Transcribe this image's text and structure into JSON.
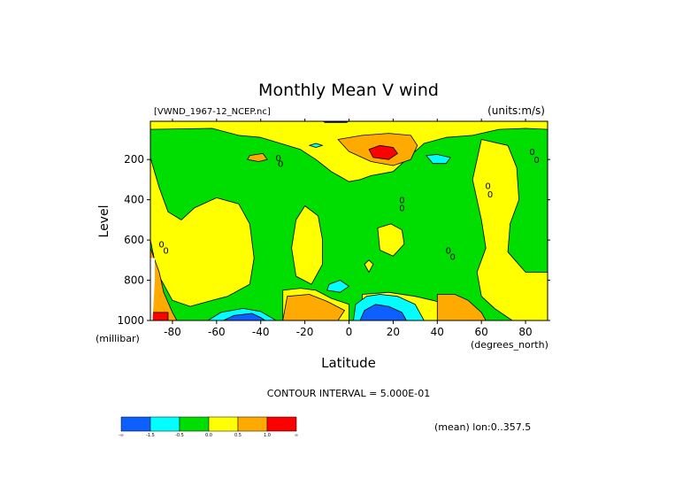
{
  "chart_data": {
    "type": "heatmap",
    "title": "Monthly Mean V wind",
    "dataset_label": "[VWND_1967-12_NCEP.nc]",
    "units_label": "(units:m/s)",
    "xlabel": "Latitude",
    "xunit": "(degrees_north)",
    "ylabel": "Level",
    "yunit": "(millibar)",
    "contour_interval": "CONTOUR INTERVAL = 5.000E-01",
    "footer_note": "(mean) lon:0..357.5",
    "xlim": [
      -90,
      90
    ],
    "ylim": [
      1000,
      10
    ],
    "y_reversed": true,
    "xticks": [
      -80,
      -60,
      -40,
      -20,
      0,
      20,
      40,
      60,
      80
    ],
    "xtick_labels": [
      "-80",
      "-60",
      "-40",
      "-20",
      "0",
      "20",
      "40",
      "60",
      "80"
    ],
    "yticks": [
      200,
      400,
      600,
      800,
      1000
    ],
    "ytick_labels": [
      "200",
      "400",
      "600",
      "800",
      "1000"
    ],
    "contour_labels": [
      {
        "lat": -85,
        "lev": 620,
        "text": "0"
      },
      {
        "lat": -83,
        "lev": 650,
        "text": "0"
      },
      {
        "lat": -32,
        "lev": 190,
        "text": "0"
      },
      {
        "lat": -31,
        "lev": 220,
        "text": "0"
      },
      {
        "lat": 24,
        "lev": 400,
        "text": "0"
      },
      {
        "lat": 24,
        "lev": 440,
        "text": "0"
      },
      {
        "lat": 45,
        "lev": 650,
        "text": "0"
      },
      {
        "lat": 47,
        "lev": 680,
        "text": "0"
      },
      {
        "lat": 63,
        "lev": 330,
        "text": "0"
      },
      {
        "lat": 64,
        "lev": 370,
        "text": "0"
      },
      {
        "lat": 83,
        "lev": 160,
        "text": "0"
      },
      {
        "lat": 85,
        "lev": 200,
        "text": "0"
      }
    ],
    "regions": [
      {
        "level": "green",
        "poly": [
          [
            -90,
            10
          ],
          [
            90,
            10
          ],
          [
            90,
            1000
          ],
          [
            -90,
            1000
          ]
        ]
      },
      {
        "level": "yellow",
        "poly": [
          [
            -90,
            50
          ],
          [
            -62,
            45
          ],
          [
            -50,
            80
          ],
          [
            -40,
            90
          ],
          [
            -22,
            150
          ],
          [
            -15,
            200
          ],
          [
            -8,
            260
          ],
          [
            0,
            310
          ],
          [
            5,
            300
          ],
          [
            10,
            280
          ],
          [
            20,
            260
          ],
          [
            28,
            180
          ],
          [
            34,
            120
          ],
          [
            44,
            90
          ],
          [
            56,
            80
          ],
          [
            68,
            50
          ],
          [
            80,
            45
          ],
          [
            90,
            50
          ],
          [
            90,
            10
          ],
          [
            -90,
            10
          ]
        ]
      },
      {
        "level": "yellow",
        "poly": [
          [
            -90,
            190
          ],
          [
            -86,
            340
          ],
          [
            -82,
            460
          ],
          [
            -76,
            500
          ],
          [
            -70,
            440
          ],
          [
            -60,
            390
          ],
          [
            -50,
            420
          ],
          [
            -45,
            520
          ],
          [
            -43,
            690
          ],
          [
            -45,
            820
          ],
          [
            -55,
            880
          ],
          [
            -62,
            900
          ],
          [
            -72,
            930
          ],
          [
            -80,
            900
          ],
          [
            -87,
            760
          ],
          [
            -90,
            600
          ]
        ]
      },
      {
        "level": "yellow",
        "poly": [
          [
            -20,
            430
          ],
          [
            -14,
            480
          ],
          [
            -12,
            600
          ],
          [
            -12,
            720
          ],
          [
            -17,
            820
          ],
          [
            -24,
            780
          ],
          [
            -26,
            640
          ],
          [
            -24,
            500
          ]
        ]
      },
      {
        "level": "yellow",
        "poly": [
          [
            -30,
            850
          ],
          [
            -22,
            840
          ],
          [
            -15,
            850
          ],
          [
            -8,
            890
          ],
          [
            0,
            920
          ],
          [
            0,
            1000
          ],
          [
            -30,
            1000
          ]
        ]
      },
      {
        "level": "yellow",
        "poly": [
          [
            6,
            870
          ],
          [
            18,
            860
          ],
          [
            30,
            880
          ],
          [
            38,
            900
          ],
          [
            44,
            920
          ],
          [
            44,
            1000
          ],
          [
            6,
            1000
          ]
        ]
      },
      {
        "level": "yellow",
        "poly": [
          [
            13,
            540
          ],
          [
            19,
            520
          ],
          [
            24,
            550
          ],
          [
            25,
            620
          ],
          [
            20,
            680
          ],
          [
            14,
            650
          ]
        ]
      },
      {
        "level": "yellow",
        "poly": [
          [
            7,
            720
          ],
          [
            9,
            700
          ],
          [
            11,
            720
          ],
          [
            9,
            760
          ]
        ]
      },
      {
        "level": "yellow",
        "poly": [
          [
            60,
            100
          ],
          [
            72,
            130
          ],
          [
            76,
            240
          ],
          [
            77,
            400
          ],
          [
            73,
            520
          ],
          [
            72,
            660
          ],
          [
            80,
            760
          ],
          [
            90,
            760
          ],
          [
            90,
            1000
          ],
          [
            74,
            1000
          ],
          [
            66,
            940
          ],
          [
            60,
            880
          ],
          [
            58,
            760
          ],
          [
            62,
            640
          ],
          [
            60,
            500
          ],
          [
            56,
            300
          ]
        ]
      },
      {
        "level": "orange",
        "poly": [
          [
            -90,
            640
          ],
          [
            -86,
            760
          ],
          [
            -84,
            860
          ],
          [
            -80,
            960
          ],
          [
            -78,
            1000
          ],
          [
            -90,
            1000
          ]
        ]
      },
      {
        "level": "orange",
        "poly": [
          [
            -45,
            180
          ],
          [
            -39,
            170
          ],
          [
            -37,
            200
          ],
          [
            -41,
            210
          ],
          [
            -46,
            200
          ]
        ]
      },
      {
        "level": "orange",
        "poly": [
          [
            -28,
            880
          ],
          [
            -18,
            870
          ],
          [
            -10,
            905
          ],
          [
            -2,
            950
          ],
          [
            -5,
            1000
          ],
          [
            -30,
            1000
          ]
        ]
      },
      {
        "level": "orange",
        "poly": [
          [
            -5,
            100
          ],
          [
            6,
            80
          ],
          [
            18,
            70
          ],
          [
            28,
            80
          ],
          [
            31,
            130
          ],
          [
            28,
            200
          ],
          [
            20,
            230
          ],
          [
            10,
            210
          ],
          [
            0,
            160
          ]
        ]
      },
      {
        "level": "orange",
        "poly": [
          [
            40,
            870
          ],
          [
            48,
            870
          ],
          [
            54,
            900
          ],
          [
            60,
            960
          ],
          [
            62,
            1000
          ],
          [
            40,
            1000
          ]
        ]
      },
      {
        "level": "red",
        "poly": [
          [
            9,
            150
          ],
          [
            14,
            130
          ],
          [
            20,
            140
          ],
          [
            22,
            170
          ],
          [
            18,
            200
          ],
          [
            11,
            190
          ]
        ]
      },
      {
        "level": "red",
        "poly": [
          [
            -90,
            960
          ],
          [
            -82,
            960
          ],
          [
            -82,
            1000
          ],
          [
            -90,
            1000
          ]
        ]
      },
      {
        "level": "cyan",
        "poly": [
          [
            -64,
            1000
          ],
          [
            -58,
            960
          ],
          [
            -48,
            940
          ],
          [
            -40,
            955
          ],
          [
            -33,
            1000
          ]
        ]
      },
      {
        "level": "cyan",
        "poly": [
          [
            -9,
            820
          ],
          [
            -4,
            800
          ],
          [
            0,
            830
          ],
          [
            -4,
            860
          ],
          [
            -10,
            850
          ]
        ]
      },
      {
        "level": "cyan",
        "poly": [
          [
            -18,
            130
          ],
          [
            -15,
            120
          ],
          [
            -12,
            130
          ],
          [
            -15,
            140
          ]
        ]
      },
      {
        "level": "cyan",
        "poly": [
          [
            35,
            180
          ],
          [
            40,
            175
          ],
          [
            46,
            190
          ],
          [
            44,
            220
          ],
          [
            38,
            220
          ]
        ]
      },
      {
        "level": "cyan",
        "poly": [
          [
            2,
            1000
          ],
          [
            3,
            920
          ],
          [
            8,
            880
          ],
          [
            14,
            870
          ],
          [
            22,
            880
          ],
          [
            30,
            920
          ],
          [
            34,
            1000
          ]
        ]
      },
      {
        "level": "blue",
        "poly": [
          [
            -57,
            1000
          ],
          [
            -52,
            975
          ],
          [
            -44,
            965
          ],
          [
            -40,
            985
          ],
          [
            -38,
            1000
          ]
        ]
      },
      {
        "level": "blue",
        "poly": [
          [
            5,
            1000
          ],
          [
            7,
            950
          ],
          [
            12,
            920
          ],
          [
            18,
            930
          ],
          [
            24,
            960
          ],
          [
            26,
            1000
          ]
        ]
      },
      {
        "level": "white",
        "poly": [
          [
            -90,
            690
          ],
          [
            -88,
            690
          ],
          [
            -88,
            800
          ],
          [
            -89,
            1000
          ],
          [
            -90,
            1000
          ]
        ]
      },
      {
        "level": "black",
        "poly": [
          [
            -12,
            10
          ],
          [
            0,
            10
          ],
          [
            -1,
            18
          ],
          [
            -11,
            18
          ]
        ]
      }
    ],
    "colorbar": {
      "labels": [
        "-∞",
        "-1.5",
        "-0.5",
        "0.0",
        "0.5",
        "1.0",
        "∞"
      ],
      "bins": [
        {
          "range": "-∞ to -1.5",
          "color": "#0d5fff"
        },
        {
          "range": "-1.5 to -0.5",
          "color": "#00ffff"
        },
        {
          "range": "-0.5 to 0.0",
          "color": "#00dd00"
        },
        {
          "range": "0.0 to 0.5",
          "color": "#ffff00"
        },
        {
          "range": "0.5 to 1.0",
          "color": "#ffaa00"
        },
        {
          "range": "1.0 to ∞",
          "color": "#ff0000"
        }
      ]
    },
    "level_colors": {
      "blue": "#0d5fff",
      "cyan": "#00ffff",
      "green": "#00dd00",
      "yellow": "#ffff00",
      "orange": "#ffaa00",
      "red": "#ff0000",
      "white": "#ffffff",
      "black": "#000000"
    }
  }
}
